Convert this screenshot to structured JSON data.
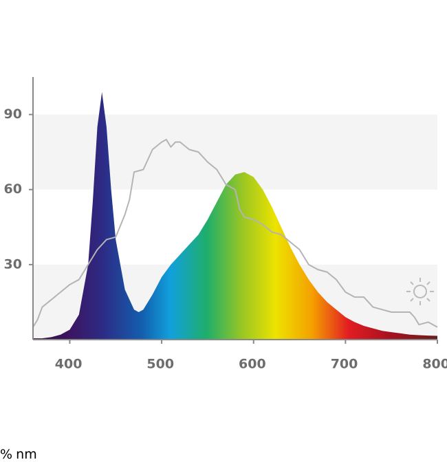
{
  "chart_data": {
    "type": "spectrum",
    "xlabel": "nm",
    "ylabel": "%",
    "xlim": [
      360,
      800
    ],
    "xticks": [
      400,
      500,
      600,
      700,
      800
    ],
    "ylim": [
      0,
      105
    ],
    "yticks": [
      30,
      60,
      90
    ],
    "series": [
      {
        "type": "area",
        "color": "rainbow",
        "x": [
          360,
          370,
          380,
          390,
          400,
          410,
          420,
          425,
          430,
          435,
          440,
          445,
          450,
          460,
          470,
          475,
          480,
          490,
          500,
          510,
          520,
          530,
          540,
          550,
          560,
          570,
          580,
          590,
          600,
          610,
          620,
          630,
          640,
          650,
          660,
          670,
          680,
          690,
          700,
          710,
          720,
          730,
          740,
          750,
          760,
          770,
          780,
          790,
          800
        ],
        "values": [
          0.5,
          0.5,
          1,
          2,
          4,
          10,
          30,
          55,
          85,
          99,
          85,
          60,
          40,
          20,
          12,
          11,
          12,
          18,
          25,
          30,
          34,
          38,
          42,
          48,
          55,
          62,
          66,
          67,
          65,
          60,
          53,
          45,
          37,
          30,
          24,
          19,
          15,
          12,
          9,
          7,
          5.5,
          4.5,
          3.5,
          3,
          2.5,
          2,
          1.8,
          1.6,
          1.5
        ]
      },
      {
        "type": "line",
        "color": "#b4b4b4",
        "x": [
          360,
          365,
          370,
          380,
          390,
          400,
          410,
          420,
          430,
          440,
          450,
          460,
          465,
          470,
          480,
          490,
          500,
          505,
          510,
          515,
          520,
          530,
          540,
          550,
          560,
          570,
          580,
          585,
          590,
          600,
          610,
          620,
          630,
          640,
          650,
          660,
          670,
          680,
          690,
          700,
          710,
          720,
          730,
          740,
          750,
          760,
          770,
          775,
          780,
          790,
          800
        ],
        "values": [
          5,
          8,
          13,
          16,
          19,
          22,
          24,
          30,
          36,
          40,
          41,
          50,
          56,
          67,
          68,
          76,
          79,
          80,
          77,
          79,
          79,
          76,
          75,
          71,
          68,
          62,
          60,
          52,
          49,
          48,
          46,
          43,
          42,
          39,
          36,
          30,
          28,
          27,
          24,
          19,
          17,
          17,
          13,
          12,
          11,
          11,
          11,
          9,
          6,
          7,
          5
        ]
      }
    ]
  }
}
